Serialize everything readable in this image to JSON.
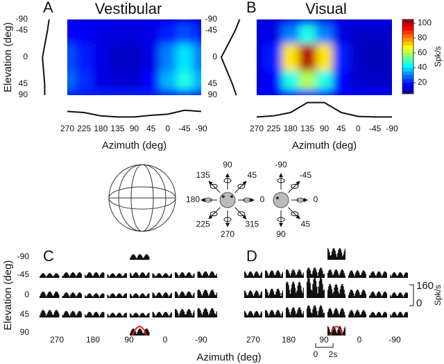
{
  "panels": [
    {
      "letter": "A",
      "title": "Vestibular",
      "xlabel": "Azimuth (deg)",
      "ylabel": "Elevation (deg)",
      "azimuth": [
        270,
        225,
        180,
        135,
        90,
        45,
        0,
        -45,
        -90
      ],
      "elevation": [
        -90,
        -45,
        0,
        45,
        90
      ],
      "firing_rate": [
        [
          15,
          15,
          15,
          15,
          15,
          15,
          15,
          15,
          15
        ],
        [
          18,
          17,
          15,
          14,
          14,
          15,
          20,
          25,
          20
        ],
        [
          25,
          20,
          15,
          12,
          12,
          15,
          30,
          40,
          30
        ],
        [
          28,
          22,
          15,
          13,
          13,
          18,
          35,
          45,
          35
        ],
        [
          20,
          20,
          20,
          20,
          20,
          20,
          20,
          20,
          20
        ]
      ],
      "azimuth_tuning": [
        22,
        20,
        14,
        12,
        12,
        15,
        17,
        24,
        22
      ],
      "elevation_tuning": [
        14,
        17,
        26,
        22,
        22
      ]
    },
    {
      "letter": "B",
      "title": "Visual",
      "xlabel": "Azimuth (deg)",
      "azimuth": [
        270,
        225,
        180,
        135,
        90,
        45,
        0,
        -45,
        -90
      ],
      "elevation": [
        -90,
        -45,
        0,
        45,
        90
      ],
      "firing_rate": [
        [
          15,
          15,
          15,
          15,
          15,
          15,
          15,
          15,
          15
        ],
        [
          15,
          15,
          30,
          45,
          30,
          15,
          12,
          12,
          12
        ],
        [
          15,
          20,
          70,
          100,
          70,
          20,
          12,
          10,
          12
        ],
        [
          15,
          18,
          45,
          60,
          45,
          18,
          12,
          12,
          12
        ],
        [
          18,
          18,
          18,
          18,
          18,
          18,
          18,
          18,
          18
        ]
      ],
      "azimuth_tuning": [
        12,
        14,
        20,
        38,
        38,
        20,
        13,
        12,
        12
      ],
      "elevation_tuning": [
        12,
        20,
        45,
        25,
        18
      ]
    }
  ],
  "colorbar": {
    "clim": [
      5,
      105
    ],
    "ticks": [
      20,
      40,
      60,
      80,
      100
    ],
    "label": "Spk/s"
  },
  "stimulus": {
    "azimuth_labels": [
      135,
      90,
      45,
      180,
      0,
      225,
      270,
      315
    ],
    "elevation_labels": [
      -90,
      -45,
      0,
      45,
      90
    ]
  },
  "psth_xlabel": "Azimuth (deg)",
  "psth_scale": {
    "value": 160,
    "zero": 0,
    "unit": "Spk/s"
  },
  "psth": [
    {
      "letter": "C",
      "ylabel": "Elevation (deg)",
      "elevation": [
        -90,
        -45,
        0,
        45,
        90
      ],
      "azimuth_labels": [
        270,
        180,
        90,
        0,
        -90
      ],
      "mean_rate": [
        [
          12
        ],
        [
          10,
          12,
          12,
          10,
          12,
          10,
          12,
          14
        ],
        [
          14,
          12,
          10,
          10,
          10,
          12,
          14,
          18
        ],
        [
          16,
          14,
          12,
          10,
          10,
          12,
          18,
          20
        ],
        [
          15
        ]
      ]
    },
    {
      "letter": "D",
      "azimuth_labels": [
        270,
        180,
        90,
        0,
        -90
      ],
      "mean_rate": [
        [
          25
        ],
        [
          14,
          16,
          18,
          22,
          18,
          16,
          14,
          12
        ],
        [
          16,
          20,
          35,
          45,
          30,
          18,
          14,
          12
        ],
        [
          14,
          16,
          22,
          26,
          20,
          16,
          12,
          12
        ],
        [
          20
        ]
      ],
      "time_bar": {
        "start": 0,
        "end": "2s"
      }
    }
  ]
}
